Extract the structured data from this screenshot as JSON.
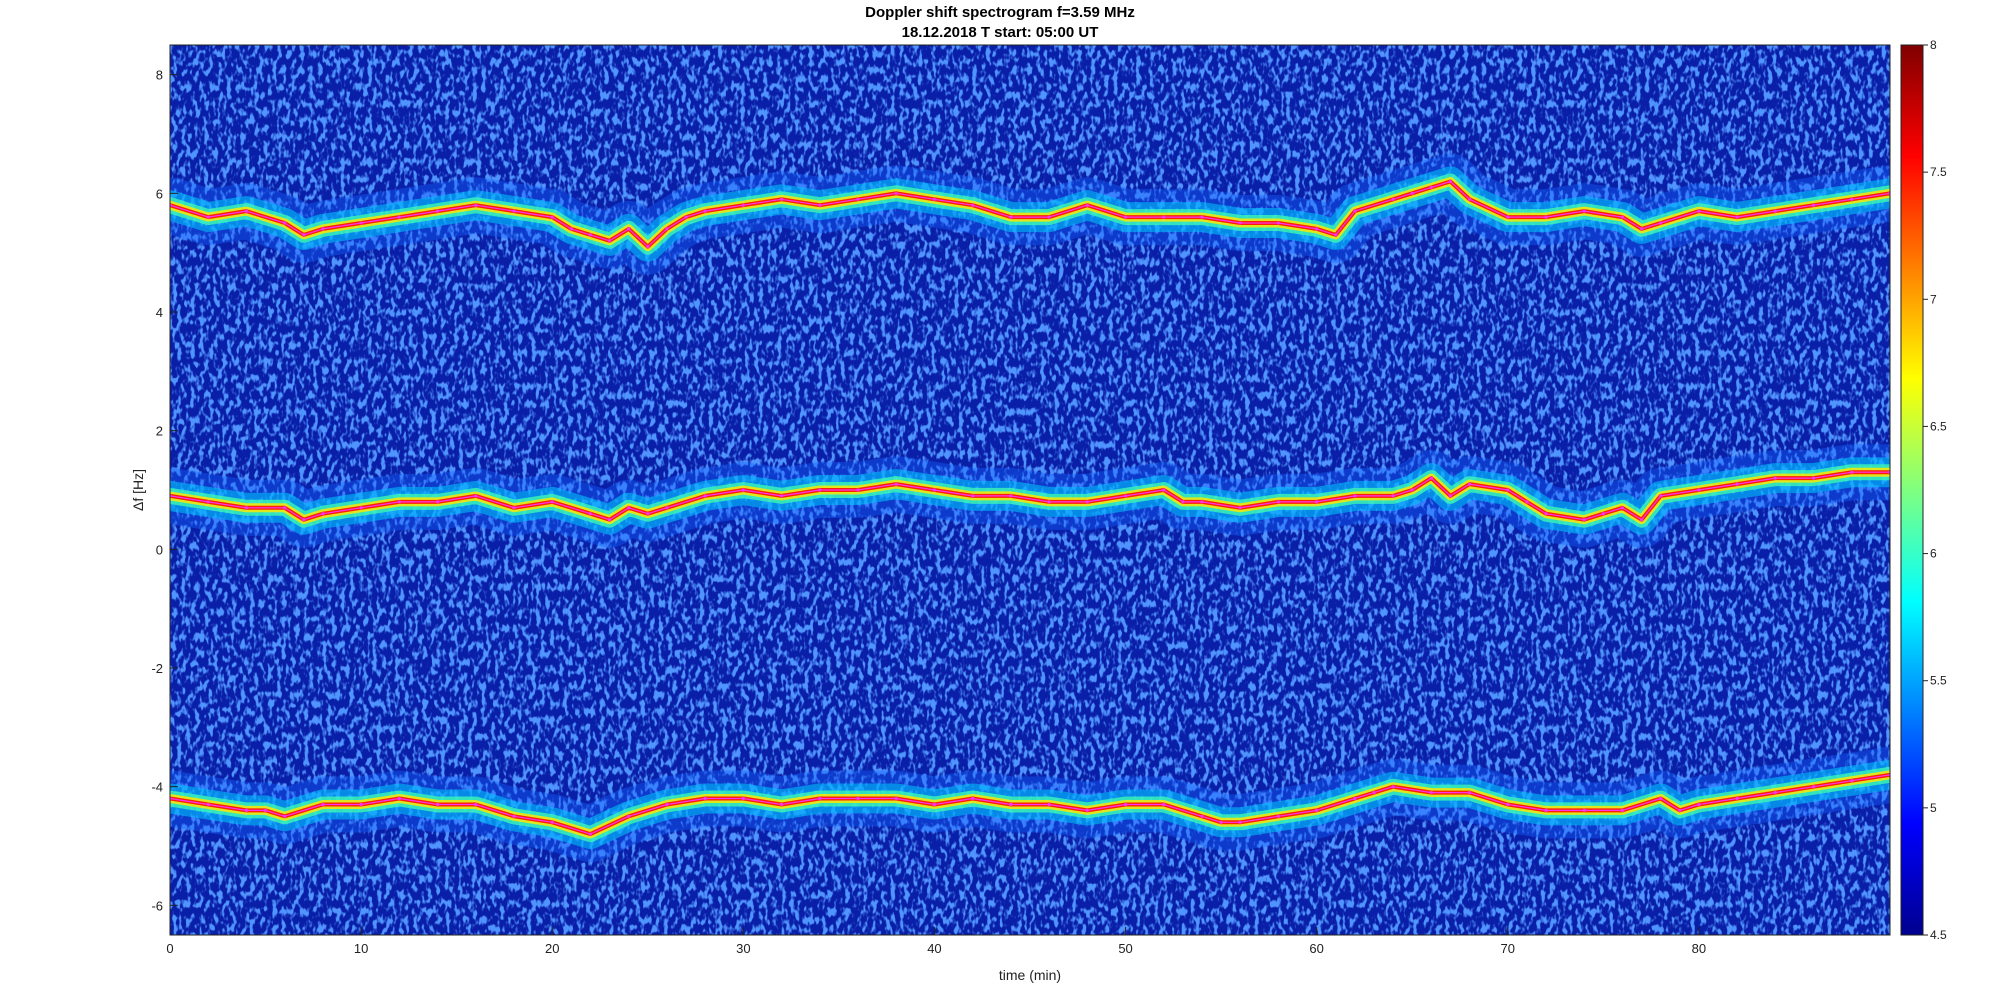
{
  "chart_data": {
    "type": "heatmap",
    "title": "Doppler shift spectrogram f=3.59 MHz",
    "subtitle": "18.12.2018   T start: 05:00 UT",
    "xlabel": "time (min)",
    "ylabel": "Δf [Hz]",
    "xlim": [
      0,
      90
    ],
    "ylim": [
      -6.5,
      8.5
    ],
    "xticks": [
      "0",
      "10",
      "20",
      "30",
      "40",
      "50",
      "60",
      "70",
      "80"
    ],
    "yticks": [
      "-6",
      "-4",
      "-2",
      "0",
      "2",
      "4",
      "6",
      "8"
    ],
    "colorbar": {
      "colormap": "jet",
      "clim": [
        4.5,
        8
      ],
      "ticks": [
        "4.5",
        "5",
        "5.5",
        "6",
        "6.5",
        "7",
        "7.5",
        "8"
      ]
    },
    "background_color": "#0a1fa8",
    "series": [
      {
        "x": [
          0,
          2,
          4,
          6,
          7,
          8,
          10,
          12,
          14,
          16,
          18,
          20,
          21,
          22,
          23,
          24,
          25,
          26,
          27,
          28,
          30,
          32,
          34,
          36,
          38,
          40,
          42,
          44,
          46,
          48,
          50,
          52,
          54,
          56,
          58,
          60,
          61,
          62,
          64,
          65,
          66,
          67,
          68,
          70,
          72,
          74,
          76,
          77,
          78,
          80,
          82,
          84,
          86,
          88,
          90
        ],
        "y": [
          5.8,
          5.6,
          5.7,
          5.5,
          5.3,
          5.4,
          5.5,
          5.6,
          5.7,
          5.8,
          5.7,
          5.6,
          5.4,
          5.3,
          5.2,
          5.4,
          5.1,
          5.4,
          5.6,
          5.7,
          5.8,
          5.9,
          5.8,
          5.9,
          6.0,
          5.9,
          5.8,
          5.6,
          5.6,
          5.8,
          5.6,
          5.6,
          5.6,
          5.5,
          5.5,
          5.4,
          5.3,
          5.7,
          5.9,
          6.0,
          6.1,
          6.2,
          5.9,
          5.6,
          5.6,
          5.7,
          5.6,
          5.4,
          5.5,
          5.7,
          5.6,
          5.7,
          5.8,
          5.9,
          6.0
        ]
      },
      {
        "x": [
          0,
          2,
          4,
          6,
          7,
          8,
          10,
          12,
          14,
          16,
          18,
          20,
          22,
          23,
          24,
          25,
          26,
          28,
          30,
          32,
          34,
          36,
          38,
          40,
          42,
          44,
          46,
          48,
          50,
          52,
          53,
          54,
          56,
          58,
          60,
          62,
          64,
          65,
          66,
          67,
          68,
          70,
          71,
          72,
          74,
          75,
          76,
          77,
          78,
          80,
          82,
          84,
          86,
          88,
          90
        ],
        "y": [
          0.9,
          0.8,
          0.7,
          0.7,
          0.5,
          0.6,
          0.7,
          0.8,
          0.8,
          0.9,
          0.7,
          0.8,
          0.6,
          0.5,
          0.7,
          0.6,
          0.7,
          0.9,
          1.0,
          0.9,
          1.0,
          1.0,
          1.1,
          1.0,
          0.9,
          0.9,
          0.8,
          0.8,
          0.9,
          1.0,
          0.8,
          0.8,
          0.7,
          0.8,
          0.8,
          0.9,
          0.9,
          1.0,
          1.2,
          0.9,
          1.1,
          1.0,
          0.8,
          0.6,
          0.5,
          0.6,
          0.7,
          0.5,
          0.9,
          1.0,
          1.1,
          1.2,
          1.2,
          1.3,
          1.3
        ]
      },
      {
        "x": [
          0,
          2,
          4,
          5,
          6,
          8,
          10,
          12,
          14,
          16,
          18,
          20,
          22,
          24,
          26,
          28,
          30,
          32,
          34,
          36,
          38,
          40,
          42,
          44,
          46,
          48,
          50,
          52,
          54,
          55,
          56,
          58,
          60,
          62,
          63,
          64,
          66,
          68,
          70,
          72,
          74,
          76,
          78,
          79,
          80,
          82,
          84,
          86,
          88,
          90
        ],
        "y": [
          -4.2,
          -4.3,
          -4.4,
          -4.4,
          -4.5,
          -4.3,
          -4.3,
          -4.2,
          -4.3,
          -4.3,
          -4.5,
          -4.6,
          -4.8,
          -4.5,
          -4.3,
          -4.2,
          -4.2,
          -4.3,
          -4.2,
          -4.2,
          -4.2,
          -4.3,
          -4.2,
          -4.3,
          -4.3,
          -4.4,
          -4.3,
          -4.3,
          -4.5,
          -4.6,
          -4.6,
          -4.5,
          -4.4,
          -4.2,
          -4.1,
          -4.0,
          -4.1,
          -4.1,
          -4.3,
          -4.4,
          -4.4,
          -4.4,
          -4.2,
          -4.4,
          -4.3,
          -4.2,
          -4.1,
          -4.0,
          -3.9,
          -3.8
        ]
      }
    ]
  }
}
